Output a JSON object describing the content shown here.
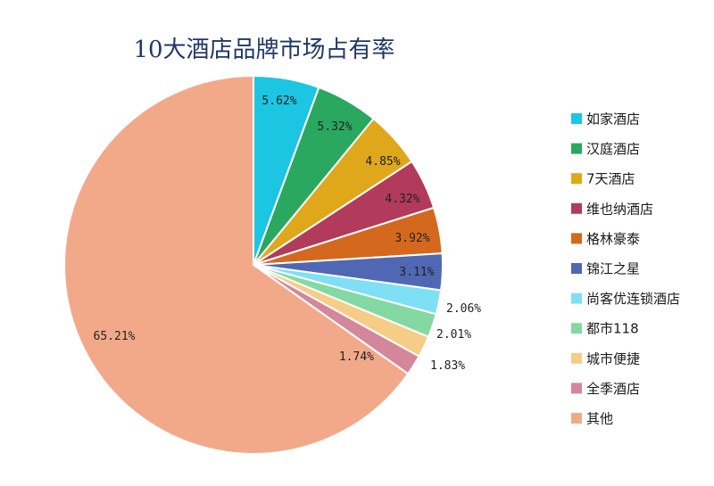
{
  "chart_data": {
    "type": "pie",
    "title": "10大酒店品牌市场占有率",
    "legend_position": "right",
    "slices": [
      {
        "label": "如家酒店",
        "value": 5.62,
        "value_label": "5.62%",
        "color": "#1cc6e3"
      },
      {
        "label": "汉庭酒店",
        "value": 5.32,
        "value_label": "5.32%",
        "color": "#2aa860"
      },
      {
        "label": "7天酒店",
        "value": 4.85,
        "value_label": "4.85%",
        "color": "#dea81a"
      },
      {
        "label": "维也纳酒店",
        "value": 4.32,
        "value_label": "4.32%",
        "color": "#b23a5a"
      },
      {
        "label": "格林豪泰",
        "value": 3.92,
        "value_label": "3.92%",
        "color": "#d4691e"
      },
      {
        "label": "锦江之星",
        "value": 3.11,
        "value_label": "3.11%",
        "color": "#5067b3"
      },
      {
        "label": "尚客优连锁酒店",
        "value": 2.06,
        "value_label": "2.06%",
        "color": "#7fe0f5"
      },
      {
        "label": "都市118",
        "value": 2.01,
        "value_label": "2.01%",
        "color": "#84d9a3"
      },
      {
        "label": "城市便捷",
        "value": 1.83,
        "value_label": "1.83%",
        "color": "#f5cd86"
      },
      {
        "label": "全季酒店",
        "value": 1.74,
        "value_label": "1.74%",
        "color": "#d4879a"
      },
      {
        "label": "其他",
        "value": 65.21,
        "value_label": "65.21%",
        "color": "#f2a98a"
      }
    ]
  }
}
